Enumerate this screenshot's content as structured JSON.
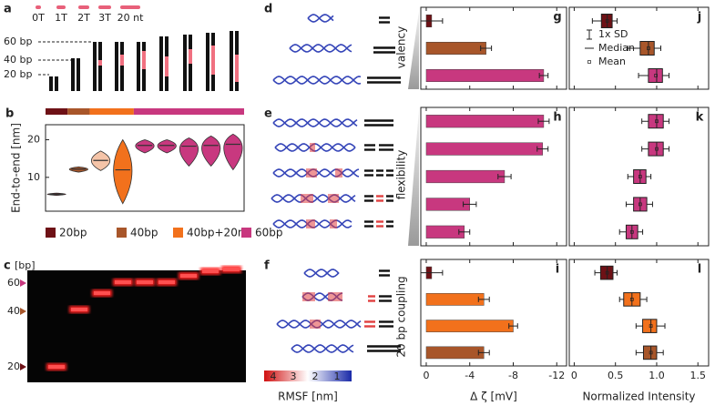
{
  "panels": {
    "a": {
      "label": "a",
      "legend": [
        "0T",
        "1T",
        "2T",
        "3T",
        "20 nt"
      ],
      "lengths": [
        "60 bp",
        "40 bp",
        "20 bp"
      ]
    },
    "c": {
      "label": "c",
      "unit": "[bp]",
      "markers": [
        "60",
        "40",
        "20"
      ]
    },
    "d": {
      "label": "d",
      "side_label": "valency"
    },
    "e": {
      "label": "e",
      "side_label": "flexibility"
    },
    "f": {
      "label": "f",
      "side_label": "20 bp coupling",
      "colorbar_title": "RMSF [nm]",
      "colorbar_ticks": [
        "4",
        "3",
        "2",
        "1"
      ]
    }
  },
  "chart_data": [
    {
      "type": "violin",
      "label": "b",
      "ylabel": "End-to-end [nm]",
      "ylim": [
        1,
        24
      ],
      "yticks": [
        10,
        20
      ],
      "series": [
        {
          "name": "20bp",
          "color": "#6e1116",
          "colors": [
            "#6e1116"
          ],
          "low": [
            5.2
          ],
          "median": [
            5.5
          ],
          "high": [
            5.8
          ]
        },
        {
          "name": "40bp",
          "color": "#a8562a",
          "colors": [
            "#a8562a"
          ],
          "low": [
            11.4
          ],
          "median": [
            12.2
          ],
          "high": [
            12.8
          ]
        },
        {
          "name": "40bp+20nt",
          "color": "#f2711c",
          "colors": [
            "#f5c4a8",
            "#f2711c"
          ],
          "low": [
            11.8,
            3
          ],
          "median": [
            14.5,
            12
          ],
          "high": [
            17,
            20
          ]
        },
        {
          "name": "60bp",
          "color": "#c8387f",
          "colors": [
            "#c8387f",
            "#c8387f",
            "#c8387f",
            "#c8387f",
            "#c8387f"
          ],
          "low": [
            16.5,
            16.5,
            13,
            13,
            12
          ],
          "median": [
            18.5,
            18.5,
            18.3,
            18.5,
            18.8
          ],
          "high": [
            20,
            20,
            20.5,
            21,
            21.5
          ]
        }
      ]
    },
    {
      "type": "barh",
      "label": "g",
      "xlim": [
        0.5,
        -12.9
      ],
      "xticks": [
        0,
        -4,
        -8,
        -12
      ],
      "show_tick_labels": false,
      "values": [
        -0.5,
        -5.5,
        -10.8
      ],
      "errors": [
        1.0,
        0.5,
        0.4
      ],
      "colors": [
        "#6e1116",
        "#a8562a",
        "#c8387f"
      ]
    },
    {
      "type": "barh",
      "label": "h",
      "xlim": [
        0.5,
        -12.9
      ],
      "xticks": [
        0,
        -4,
        -8,
        -12
      ],
      "show_tick_labels": false,
      "values": [
        -10.8,
        -10.7,
        -7.2,
        -4.0,
        -3.5
      ],
      "errors": [
        0.5,
        0.5,
        0.6,
        0.6,
        0.5
      ],
      "colors": [
        "#c8387f",
        "#c8387f",
        "#c8387f",
        "#c8387f",
        "#c8387f"
      ]
    },
    {
      "type": "barh",
      "label": "i",
      "xlim": [
        0.5,
        -12.9
      ],
      "xticks": [
        0,
        -4,
        -8,
        -12
      ],
      "show_tick_labels": true,
      "xlabel": "Δ ζ [mV]",
      "values": [
        -0.5,
        -5.3,
        -8.0,
        -5.3
      ],
      "errors": [
        1.0,
        0.5,
        0.4,
        0.5
      ],
      "colors": [
        "#6e1116",
        "#f2711c",
        "#f2711c",
        "#a8562a"
      ]
    },
    {
      "type": "box",
      "label": "j",
      "xlim": [
        -0.06,
        1.63
      ],
      "xticks": [
        0,
        0.5,
        {
          "value": 1,
          "label": "1.0"
        },
        1.5
      ],
      "show_tick_labels": false,
      "legend": [
        "1x SD",
        "Median",
        "Mean"
      ],
      "low": [
        0.22,
        0.65,
        0.78
      ],
      "q1": [
        0.33,
        0.8,
        0.9
      ],
      "median": [
        0.4,
        0.9,
        1.0
      ],
      "q3": [
        0.46,
        0.97,
        1.07
      ],
      "high": [
        0.52,
        1.05,
        1.15
      ],
      "mean": [
        0.4,
        0.9,
        0.99
      ],
      "colors": [
        "#6e1116",
        "#a8562a",
        "#c8387f"
      ]
    },
    {
      "type": "box",
      "label": "k",
      "xlim": [
        -0.06,
        1.63
      ],
      "xticks": [
        0,
        0.5,
        {
          "value": 1,
          "label": "1.0"
        },
        1.5
      ],
      "show_tick_labels": false,
      "low": [
        0.82,
        0.82,
        0.65,
        0.63,
        0.55
      ],
      "q1": [
        0.9,
        0.9,
        0.72,
        0.72,
        0.63
      ],
      "median": [
        1.0,
        1.0,
        0.8,
        0.8,
        0.7
      ],
      "q3": [
        1.08,
        1.08,
        0.87,
        0.88,
        0.77
      ],
      "high": [
        1.15,
        1.15,
        0.93,
        0.95,
        0.83
      ],
      "mean": [
        1.0,
        1.0,
        0.8,
        0.8,
        0.7
      ],
      "colors": [
        "#c8387f",
        "#c8387f",
        "#c8387f",
        "#c8387f",
        "#c8387f"
      ]
    },
    {
      "type": "box",
      "label": "l",
      "xlim": [
        -0.06,
        1.63
      ],
      "xticks": [
        0,
        0.5,
        {
          "value": 1,
          "label": "1.0"
        },
        1.5
      ],
      "show_tick_labels": true,
      "xlabel": "Normalized Intensity",
      "low": [
        0.25,
        0.55,
        0.75,
        0.75
      ],
      "q1": [
        0.32,
        0.6,
        0.83,
        0.84
      ],
      "median": [
        0.4,
        0.7,
        0.93,
        0.93
      ],
      "q3": [
        0.47,
        0.8,
        1.0,
        1.0
      ],
      "high": [
        0.52,
        0.88,
        1.1,
        1.08
      ],
      "mean": [
        0.4,
        0.7,
        0.93,
        0.93
      ],
      "colors": [
        "#6e1116",
        "#f2711c",
        "#f2711c",
        "#a8562a"
      ]
    }
  ]
}
